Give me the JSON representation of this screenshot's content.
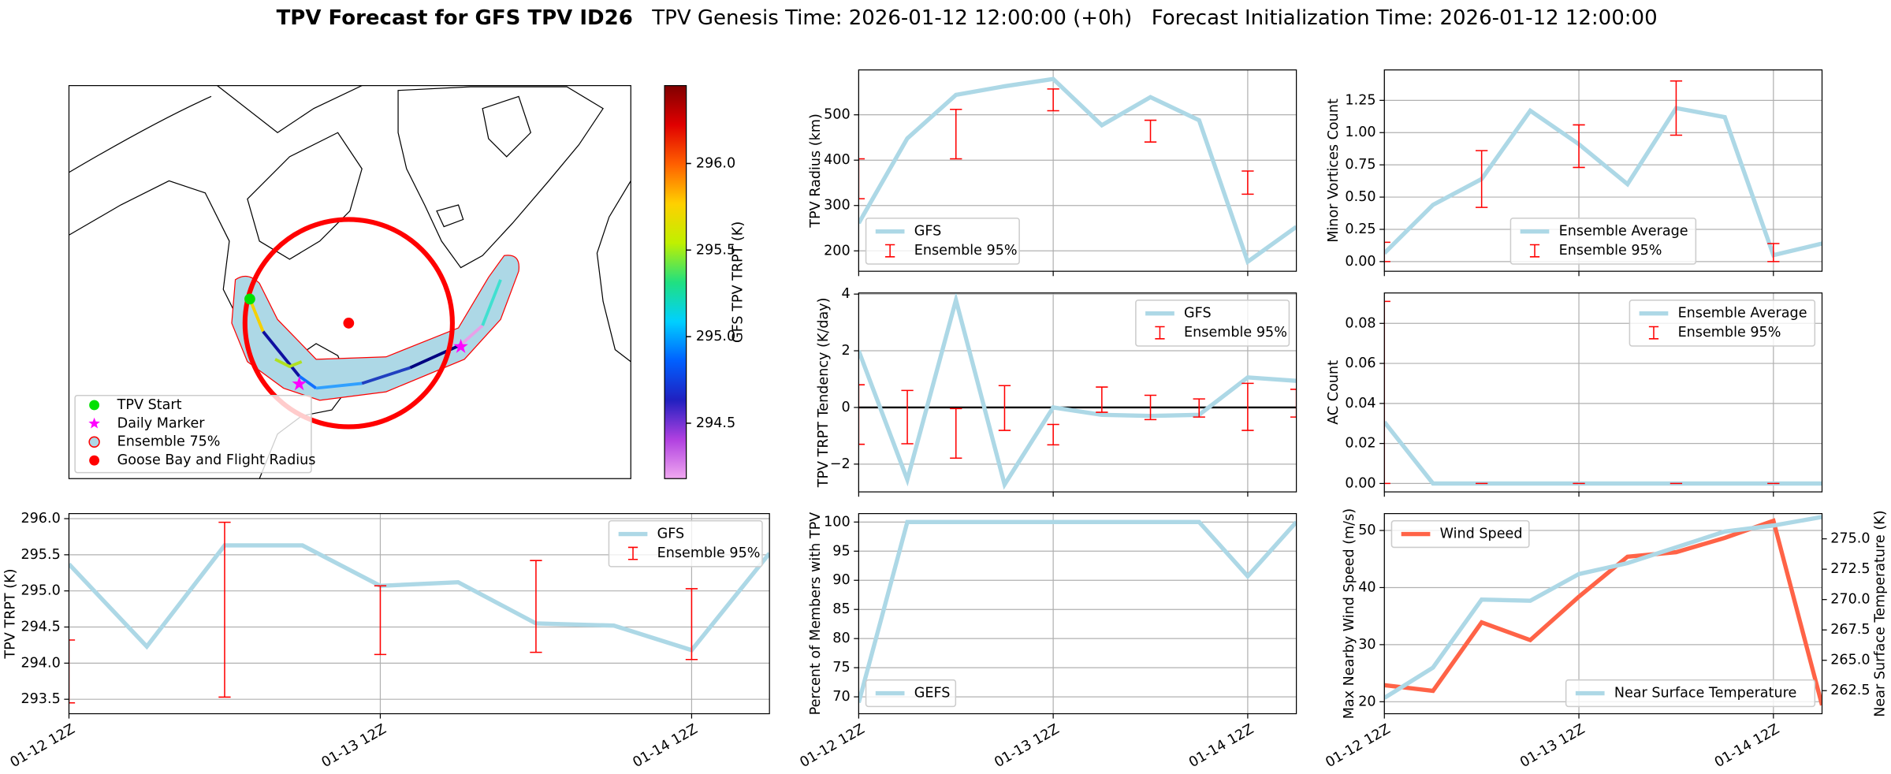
{
  "title": "TPV Forecast for GFS TPV ID26",
  "subtitles": [
    "TPV Genesis Time: 2026-01-12 12:00:00 (+0h)",
    "Forecast Initialization Time: 2026-01-12 12:00:00"
  ],
  "chart_data": [
    {
      "type": "map",
      "legend_items": [
        {
          "name": "TPV Start",
          "color": "#00e000",
          "marker": "o"
        },
        {
          "name": "Daily Marker",
          "color": "#ff00ff",
          "marker": "*"
        },
        {
          "name": "Ensemble 75%",
          "color": "#add8e6",
          "edge": "#ff0000",
          "marker": "o"
        },
        {
          "name": "Goose Bay and Flight Radius",
          "color": "#ff0000",
          "marker": "o"
        }
      ],
      "colorbar": {
        "label": "GFS TPV TRPT (K)",
        "clim": [
          294.18,
          296.45
        ],
        "ticks": [
          294.5,
          {
            "value": 295,
            "label": "295.0"
          },
          295.5,
          {
            "value": 296,
            "label": "296.0"
          }
        ],
        "colors": [
          "#f0a8f0",
          "#b040e0",
          "#2020c0",
          "#0060ff",
          "#00d0ff",
          "#20e080",
          "#c0f000",
          "#ffd000",
          "#ff6000",
          "#e00000",
          "#800000"
        ]
      }
    },
    {
      "type": "line",
      "ylabel": "TPV TRPT (K)",
      "x": [
        0,
        6,
        12,
        18,
        24,
        30,
        36,
        42,
        48,
        54
      ],
      "xlim": [
        0,
        54
      ],
      "xticks": [
        {
          "value": 0,
          "label": "01-12 12Z"
        },
        {
          "value": 24,
          "label": "01-13 12Z"
        },
        {
          "value": 48,
          "label": "01-14 12Z"
        }
      ],
      "ylim": [
        293.3,
        296.07
      ],
      "yticks": [
        293.5,
        {
          "value": 294,
          "label": "294.0"
        },
        294.5,
        {
          "value": 295,
          "label": "295.0"
        },
        295.5,
        {
          "value": 296,
          "label": "296.0"
        }
      ],
      "grid": true,
      "legend": "upper right",
      "series": [
        {
          "name": "GFS",
          "color": "#add8e6",
          "values": [
            295.37,
            294.23,
            295.63,
            295.63,
            295.07,
            295.12,
            294.55,
            294.52,
            294.18,
            295.52
          ]
        }
      ],
      "errorbars": {
        "name": "Ensemble 95%",
        "color": "#ff0000",
        "x": [
          0,
          12,
          24,
          36,
          48
        ],
        "low": [
          293.45,
          293.53,
          294.12,
          294.15,
          294.05
        ],
        "high": [
          294.32,
          295.95,
          295.07,
          295.42,
          295.03
        ]
      }
    },
    {
      "type": "line",
      "ylabel": "TPV Radius (km)",
      "x": [
        0,
        6,
        12,
        18,
        24,
        30,
        36,
        42,
        48,
        54
      ],
      "xlim": [
        0,
        54
      ],
      "xticks": [
        0,
        24,
        48
      ],
      "ylim": [
        155,
        599
      ],
      "yticks": [
        200,
        300,
        400,
        500
      ],
      "grid": true,
      "legend": "lower left",
      "series": [
        {
          "name": "GFS",
          "color": "#add8e6",
          "values": [
            261,
            448,
            544,
            563,
            579,
            477,
            539,
            488,
            176,
            253
          ]
        }
      ],
      "errorbars": {
        "name": "Ensemble 95%",
        "color": "#ff0000",
        "x": [
          0,
          12,
          24,
          36,
          48
        ],
        "low": [
          315,
          403,
          509,
          440,
          325
        ],
        "high": [
          403,
          512,
          557,
          488,
          376
        ]
      }
    },
    {
      "type": "line",
      "ylabel": "TPV TRPT Tendency (K/day)",
      "x": [
        0,
        6,
        12,
        18,
        24,
        30,
        36,
        42,
        48,
        54
      ],
      "xlim": [
        0,
        54
      ],
      "xticks": [
        0,
        24,
        48
      ],
      "ylim": [
        -2.98,
        4.04
      ],
      "yticks": [
        {
          "value": -2,
          "label": "−2"
        },
        0,
        2,
        4
      ],
      "grid": true,
      "legend": "upper right",
      "hline": {
        "value": 0,
        "color": "#000000"
      },
      "series": [
        {
          "name": "GFS",
          "color": "#add8e6",
          "values": [
            2.0,
            -2.55,
            3.79,
            -2.72,
            0,
            -0.26,
            -0.3,
            -0.26,
            1.06,
            0.94
          ]
        }
      ],
      "errorbars": {
        "name": "Ensemble 95%",
        "color": "#ff0000",
        "x": [
          0,
          6,
          12,
          18,
          24,
          30,
          36,
          42,
          48,
          54
        ],
        "low": [
          -1.3,
          -1.28,
          -1.79,
          -0.81,
          -1.32,
          -0.17,
          -0.43,
          -0.34,
          -0.81,
          -0.34
        ],
        "high": [
          0.8,
          0.6,
          -0.04,
          0.77,
          -0.6,
          0.72,
          0.43,
          0.3,
          0.85,
          0.64
        ]
      }
    },
    {
      "type": "line",
      "ylabel": "Percent of Members with TPV",
      "x": [
        0,
        6,
        12,
        18,
        24,
        30,
        36,
        42,
        48,
        54
      ],
      "xlim": [
        0,
        54
      ],
      "xticks": [
        {
          "value": 0,
          "label": "01-12 12Z"
        },
        {
          "value": 24,
          "label": "01-13 12Z"
        },
        {
          "value": 48,
          "label": "01-14 12Z"
        }
      ],
      "ylim": [
        67.1,
        101.45
      ],
      "yticks": [
        70,
        75,
        80,
        85,
        90,
        95,
        100
      ],
      "grid": true,
      "legend": "lower left",
      "series": [
        {
          "name": "GEFS",
          "color": "#add8e6",
          "values": [
            69,
            100,
            100,
            100,
            100,
            100,
            100,
            100,
            90.7,
            100
          ]
        }
      ]
    },
    {
      "type": "line",
      "ylabel": "Minor Vortices Count",
      "x": [
        0,
        6,
        12,
        18,
        24,
        30,
        36,
        42,
        48,
        54
      ],
      "xlim": [
        0,
        54
      ],
      "xticks": [
        0,
        24,
        48
      ],
      "ylim": [
        -0.075,
        1.486
      ],
      "yticks": [
        {
          "value": 0,
          "label": "0.00"
        },
        {
          "value": 0.25,
          "label": "0.25"
        },
        {
          "value": 0.5,
          "label": "0.50"
        },
        {
          "value": 0.75,
          "label": "0.75"
        },
        {
          "value": 1,
          "label": "1.00"
        },
        {
          "value": 1.25,
          "label": "1.25"
        }
      ],
      "grid": true,
      "legend": "lower center",
      "series": [
        {
          "name": "Ensemble Average",
          "color": "#add8e6",
          "values": [
            0.065,
            0.44,
            0.64,
            1.17,
            0.91,
            0.6,
            1.19,
            1.12,
            0.05,
            0.14
          ]
        }
      ],
      "errorbars": {
        "name": "Ensemble 95%",
        "color": "#ff0000",
        "x": [
          0,
          12,
          24,
          36,
          48
        ],
        "low": [
          0,
          0.42,
          0.73,
          0.98,
          0
        ],
        "high": [
          0.15,
          0.86,
          1.06,
          1.4,
          0.14
        ]
      }
    },
    {
      "type": "line",
      "ylabel": "AC Count",
      "x": [
        0,
        6,
        12,
        18,
        24,
        30,
        36,
        42,
        48,
        54
      ],
      "xlim": [
        0,
        54
      ],
      "xticks": [
        0,
        24,
        48
      ],
      "ylim": [
        -0.0042,
        0.0952
      ],
      "yticks": [
        {
          "value": 0,
          "label": "0.00"
        },
        {
          "value": 0.02,
          "label": "0.02"
        },
        {
          "value": 0.04,
          "label": "0.04"
        },
        {
          "value": 0.06,
          "label": "0.06"
        },
        {
          "value": 0.08,
          "label": "0.08"
        }
      ],
      "grid": true,
      "legend": "upper right",
      "series": [
        {
          "name": "Ensemble Average",
          "color": "#add8e6",
          "values": [
            0.0307,
            0,
            0,
            0,
            0,
            0,
            0,
            0,
            0,
            0
          ]
        }
      ],
      "errorbars": {
        "name": "Ensemble 95%",
        "color": "#ff0000",
        "x": [
          0,
          12,
          24,
          36,
          48
        ],
        "low": [
          0,
          0,
          0,
          0,
          0
        ],
        "high": [
          0.091,
          0,
          0,
          0,
          0
        ]
      }
    },
    {
      "type": "line",
      "ylabel": "Max Nearby Wind Speed (m/s)",
      "y2label": "Near Surface Temperature (K)",
      "y_color": "#ff6347",
      "y2_color": "#4169e1",
      "x": [
        0,
        6,
        12,
        18,
        24,
        30,
        36,
        42,
        48,
        54
      ],
      "xlim": [
        0,
        54
      ],
      "xticks": [
        {
          "value": 0,
          "label": "01-12 12Z"
        },
        {
          "value": 24,
          "label": "01-13 12Z"
        },
        {
          "value": 48,
          "label": "01-14 12Z"
        }
      ],
      "ylim": [
        17.9,
        52.96
      ],
      "yticks": [
        20,
        30,
        40,
        50
      ],
      "y2lim": [
        260.6,
        277.08
      ],
      "y2ticks": [
        262.5,
        {
          "value": 265,
          "label": "265.0"
        },
        267.5,
        {
          "value": 270,
          "label": "270.0"
        },
        272.5,
        {
          "value": 275,
          "label": "275.0"
        }
      ],
      "grid": true,
      "series": [
        {
          "name": "Wind Speed",
          "color": "#ff6347",
          "legend": "upper left",
          "values": [
            22.9,
            21.9,
            33.9,
            30.8,
            38.4,
            45.4,
            46.2,
            48.7,
            51.7,
            19.4
          ]
        },
        {
          "name": "Near Surface Temperature",
          "color": "#add8e6",
          "axis": "y2",
          "legend": "lower right",
          "values": [
            261.9,
            264.4,
            270.0,
            269.9,
            272.1,
            273.0,
            274.3,
            275.6,
            276.1,
            276.8
          ]
        }
      ]
    }
  ]
}
